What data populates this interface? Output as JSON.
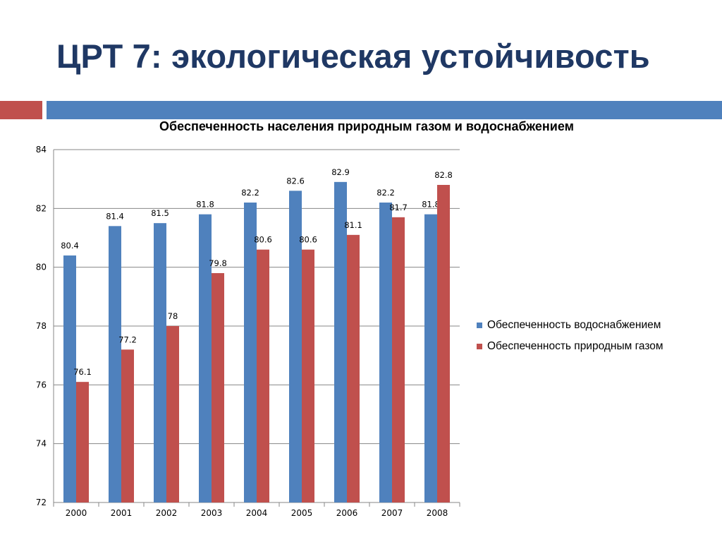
{
  "slide": {
    "title": "ЦРТ 7: экологическая устойчивость"
  },
  "chart_data": {
    "type": "bar",
    "title": "Обеспеченность населения природным газом и водоснабжением",
    "categories": [
      "2000",
      "2001",
      "2002",
      "2003",
      "2004",
      "2005",
      "2006",
      "2007",
      "2008"
    ],
    "series": [
      {
        "name": "Обеспеченность водоснабжением",
        "color": "#4f81bd",
        "values": [
          80.4,
          81.4,
          81.5,
          81.8,
          82.2,
          82.6,
          82.9,
          82.2,
          81.8
        ],
        "labels": [
          "80.4",
          "81.4",
          "81.5",
          "81.8",
          "82.2",
          "82.6",
          "82.9",
          "82.2",
          "81.8"
        ]
      },
      {
        "name": "Обеспеченность природным газом",
        "color": "#c0504d",
        "values": [
          76.1,
          77.2,
          78,
          79.8,
          80.6,
          80.6,
          81.1,
          81.7,
          82.8
        ],
        "labels": [
          "76.1",
          "77.2",
          "78",
          "79.8",
          "80.6",
          "80.6",
          "81.1",
          "81.7",
          "82.8"
        ]
      }
    ],
    "ylim": [
      72,
      84
    ],
    "yticks": [
      72,
      74,
      76,
      78,
      80,
      82,
      84
    ],
    "ytick_labels": [
      "72",
      "74",
      "76",
      "78",
      "80",
      "82",
      "84"
    ],
    "grid": true,
    "legend_position": "right"
  }
}
